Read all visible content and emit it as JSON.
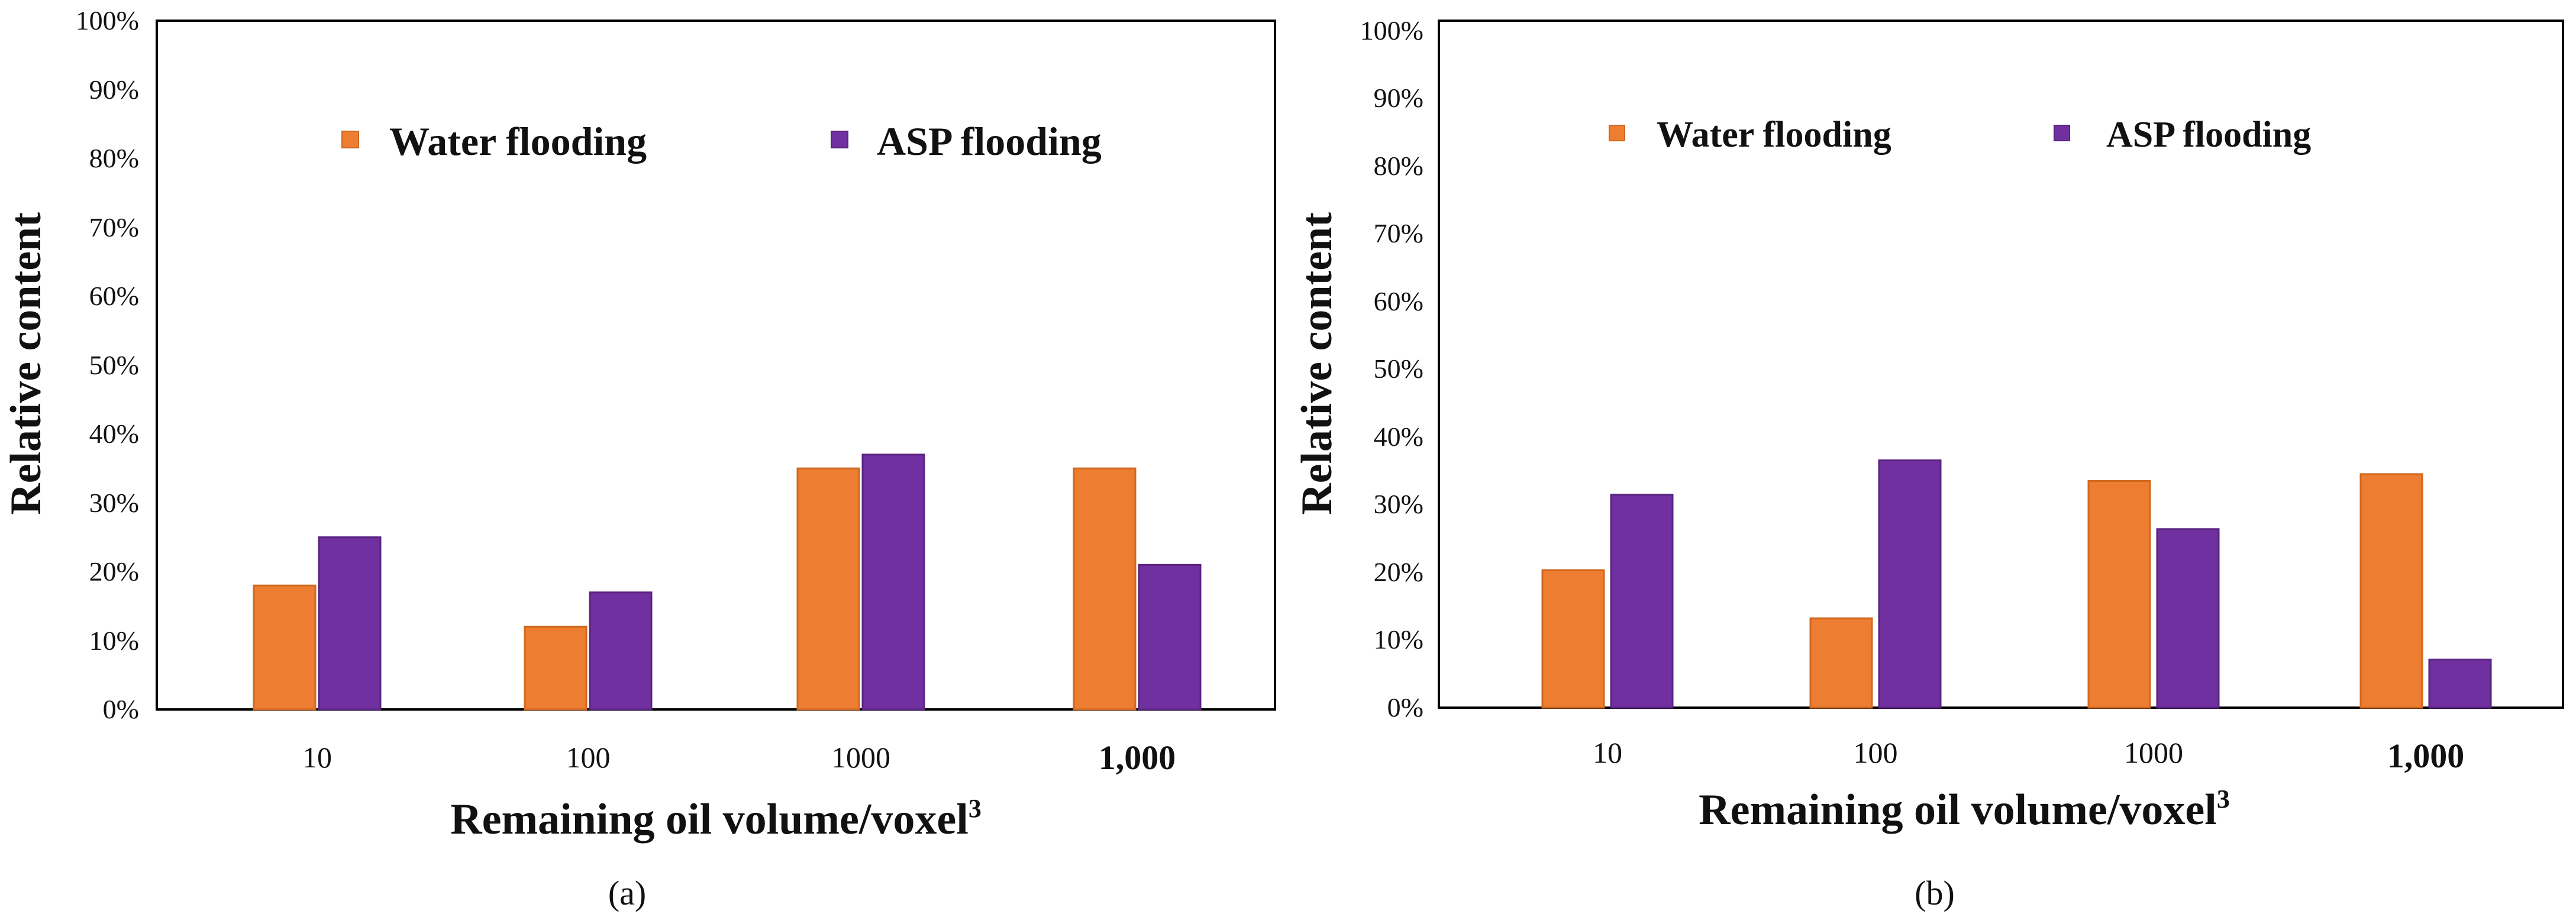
{
  "chart_data": [
    {
      "panel": "a",
      "type": "bar",
      "caption": "(a)",
      "categories": [
        "10",
        "100",
        "1000",
        "1,000"
      ],
      "series": [
        {
          "name": "Water flooding",
          "color": "#ED7D31",
          "values": [
            18,
            12,
            35,
            35
          ]
        },
        {
          "name": "ASP flooding",
          "color": "#7030A0",
          "values": [
            25,
            17,
            37,
            21
          ]
        }
      ],
      "yticks": [
        "0%",
        "10%",
        "20%",
        "30%",
        "40%",
        "50%",
        "60%",
        "70%",
        "80%",
        "90%",
        "100%"
      ],
      "ylim": [
        0,
        100
      ],
      "xlabel": "Remaining oil volume/voxel",
      "xlabel_sup": "3",
      "ylabel": "Relative content",
      "legend": [
        "Water flooding",
        "ASP flooding"
      ]
    },
    {
      "panel": "b",
      "type": "bar",
      "caption": "(b)",
      "categories": [
        "10",
        "100",
        "1000",
        "1,000"
      ],
      "series": [
        {
          "name": "Water flooding",
          "color": "#ED7D31",
          "values": [
            20,
            13,
            33,
            34
          ]
        },
        {
          "name": "ASP flooding",
          "color": "#7030A0",
          "values": [
            31,
            36,
            26,
            7
          ]
        }
      ],
      "yticks": [
        "0%",
        "10%",
        "20%",
        "30%",
        "40%",
        "50%",
        "60%",
        "70%",
        "80%",
        "90%",
        "100%"
      ],
      "ylim": [
        0,
        100
      ],
      "xlabel": "Remaining oil volume/voxel",
      "xlabel_sup": "3",
      "ylabel": "Relative content",
      "legend": [
        "Water flooding",
        "ASP flooding"
      ]
    }
  ]
}
